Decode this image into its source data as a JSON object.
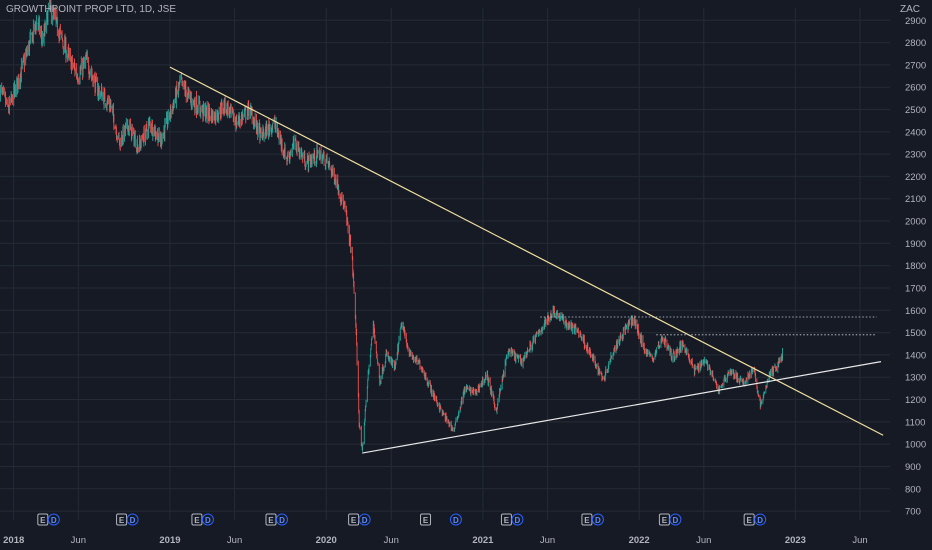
{
  "header": {
    "symbol_line": "GROWTHPOINT PROP LTD, 1D, JSE",
    "currency": "ZAC"
  },
  "chart_data": {
    "type": "candlestick",
    "y_axis": {
      "ticks": [
        2900,
        2800,
        2700,
        2600,
        2500,
        2400,
        2300,
        2200,
        2100,
        2000,
        1900,
        1800,
        1700,
        1600,
        1500,
        1400,
        1300,
        1200,
        1100,
        1000,
        900,
        800,
        700
      ],
      "ylim": [
        660,
        2955
      ]
    },
    "x_axis": {
      "labels": [
        {
          "text": "2018",
          "date": "2018-01-01",
          "bold": true
        },
        {
          "text": "Jun",
          "date": "2018-06-01"
        },
        {
          "text": "2019",
          "date": "2019-01-01",
          "bold": true
        },
        {
          "text": "Jun",
          "date": "2019-06-01"
        },
        {
          "text": "2020",
          "date": "2020-01-01",
          "bold": true
        },
        {
          "text": "Jun",
          "date": "2020-06-01"
        },
        {
          "text": "2021",
          "date": "2021-01-01",
          "bold": true
        },
        {
          "text": "Jun",
          "date": "2021-06-01"
        },
        {
          "text": "2022",
          "date": "2022-01-01",
          "bold": true
        },
        {
          "text": "Jun",
          "date": "2022-06-01"
        },
        {
          "text": "2023",
          "date": "2023-01-01",
          "bold": true
        },
        {
          "text": "Jun",
          "date": "2023-06-01"
        }
      ],
      "xlim": [
        "2017-11-30",
        "2023-08-10"
      ]
    },
    "price_path": [
      [
        "2017-11-30",
        2590
      ],
      [
        "2017-12-20",
        2500
      ],
      [
        "2018-01-10",
        2620
      ],
      [
        "2018-02-05",
        2780
      ],
      [
        "2018-02-25",
        2900
      ],
      [
        "2018-03-10",
        2800
      ],
      [
        "2018-03-25",
        2960
      ],
      [
        "2018-04-15",
        2860
      ],
      [
        "2018-05-10",
        2730
      ],
      [
        "2018-06-01",
        2650
      ],
      [
        "2018-06-20",
        2720
      ],
      [
        "2018-07-15",
        2590
      ],
      [
        "2018-08-15",
        2520
      ],
      [
        "2018-09-05",
        2350
      ],
      [
        "2018-09-25",
        2430
      ],
      [
        "2018-10-20",
        2330
      ],
      [
        "2018-11-15",
        2440
      ],
      [
        "2018-12-10",
        2360
      ],
      [
        "2019-01-10",
        2530
      ],
      [
        "2019-01-25",
        2620
      ],
      [
        "2019-02-20",
        2540
      ],
      [
        "2019-03-20",
        2490
      ],
      [
        "2019-04-15",
        2470
      ],
      [
        "2019-05-10",
        2520
      ],
      [
        "2019-06-05",
        2440
      ],
      [
        "2019-07-05",
        2500
      ],
      [
        "2019-08-01",
        2380
      ],
      [
        "2019-09-01",
        2440
      ],
      [
        "2019-10-01",
        2280
      ],
      [
        "2019-10-20",
        2350
      ],
      [
        "2019-11-15",
        2260
      ],
      [
        "2019-12-15",
        2300
      ],
      [
        "2020-01-05",
        2260
      ],
      [
        "2020-01-25",
        2180
      ],
      [
        "2020-02-15",
        2040
      ],
      [
        "2020-03-01",
        1850
      ],
      [
        "2020-03-10",
        1540
      ],
      [
        "2020-03-18",
        1100
      ],
      [
        "2020-03-25",
        960
      ],
      [
        "2020-04-05",
        1250
      ],
      [
        "2020-04-20",
        1540
      ],
      [
        "2020-05-05",
        1280
      ],
      [
        "2020-05-20",
        1400
      ],
      [
        "2020-06-10",
        1340
      ],
      [
        "2020-06-25",
        1540
      ],
      [
        "2020-07-15",
        1400
      ],
      [
        "2020-08-10",
        1350
      ],
      [
        "2020-09-05",
        1230
      ],
      [
        "2020-10-01",
        1130
      ],
      [
        "2020-10-25",
        1060
      ],
      [
        "2020-11-20",
        1250
      ],
      [
        "2020-12-15",
        1230
      ],
      [
        "2021-01-10",
        1310
      ],
      [
        "2021-02-01",
        1150
      ],
      [
        "2021-03-01",
        1420
      ],
      [
        "2021-04-01",
        1370
      ],
      [
        "2021-05-05",
        1480
      ],
      [
        "2021-06-15",
        1600
      ],
      [
        "2021-07-15",
        1540
      ],
      [
        "2021-08-15",
        1500
      ],
      [
        "2021-09-10",
        1400
      ],
      [
        "2021-10-10",
        1290
      ],
      [
        "2021-11-01",
        1420
      ],
      [
        "2021-12-01",
        1520
      ],
      [
        "2021-12-20",
        1560
      ],
      [
        "2022-01-10",
        1440
      ],
      [
        "2022-02-01",
        1380
      ],
      [
        "2022-02-25",
        1480
      ],
      [
        "2022-03-20",
        1390
      ],
      [
        "2022-04-15",
        1450
      ],
      [
        "2022-05-10",
        1330
      ],
      [
        "2022-06-05",
        1380
      ],
      [
        "2022-07-05",
        1240
      ],
      [
        "2022-08-01",
        1330
      ],
      [
        "2022-09-01",
        1270
      ],
      [
        "2022-09-25",
        1340
      ],
      [
        "2022-10-12",
        1170
      ],
      [
        "2022-11-01",
        1310
      ],
      [
        "2022-11-20",
        1350
      ],
      [
        "2022-12-05",
        1420
      ]
    ],
    "trendlines": [
      {
        "name": "descending-resistance",
        "from": [
          "2019-01-01",
          2690
        ],
        "to": [
          "2023-07-25",
          1040
        ],
        "color": "#f0e0a0"
      },
      {
        "name": "ascending-support",
        "from": [
          "2020-03-25",
          960
        ],
        "to": [
          "2023-07-20",
          1370
        ],
        "color": "#e8e8e8"
      }
    ],
    "horizontal_lines": [
      {
        "name": "upper-dotted-level",
        "value": 1570,
        "from": "2021-05-15",
        "to": "2023-07-10"
      },
      {
        "name": "lower-dotted-level",
        "value": 1490,
        "from": "2022-02-10",
        "to": "2023-07-10"
      }
    ],
    "events": [
      {
        "date": "2018-03-10",
        "labels": [
          "E",
          "D"
        ]
      },
      {
        "date": "2018-09-10",
        "labels": [
          "E",
          "D"
        ]
      },
      {
        "date": "2019-03-05",
        "labels": [
          "E",
          "D"
        ]
      },
      {
        "date": "2019-08-25",
        "labels": [
          "E",
          "D"
        ]
      },
      {
        "date": "2020-03-05",
        "labels": [
          "E",
          "D"
        ]
      },
      {
        "date": "2020-08-20",
        "labels": [
          "E"
        ]
      },
      {
        "date": "2020-10-30",
        "labels": [
          "D"
        ]
      },
      {
        "date": "2021-02-25",
        "labels": [
          "E",
          "D"
        ]
      },
      {
        "date": "2021-09-01",
        "labels": [
          "E",
          "D"
        ]
      },
      {
        "date": "2022-03-01",
        "labels": [
          "E",
          "D"
        ]
      },
      {
        "date": "2022-09-15",
        "labels": [
          "E",
          "D"
        ]
      }
    ],
    "colors": {
      "up": "#26a69a",
      "down": "#ef5350",
      "background": "#161a25",
      "grid": "#252a35",
      "text": "#b2b5be",
      "event_e": "#b2b5be",
      "event_d": "#2962ff"
    }
  }
}
